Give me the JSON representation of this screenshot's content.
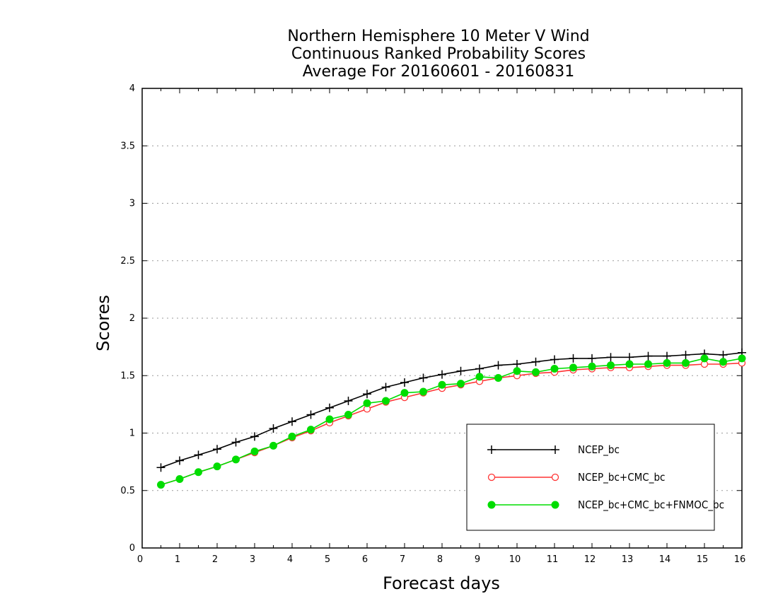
{
  "chart_data": {
    "type": "line",
    "title": [
      "Northern Hemisphere 10 Meter V Wind",
      "Continuous Ranked Probability Scores",
      "Average For 20160601 - 20160831"
    ],
    "xlabel": "Forecast days",
    "ylabel": "Scores",
    "xlim": [
      0,
      16
    ],
    "ylim": [
      0,
      4
    ],
    "x_ticks": [
      "0",
      "1",
      "2",
      "3",
      "4",
      "5",
      "6",
      "7",
      "8",
      "9",
      "10",
      "11",
      "12",
      "13",
      "14",
      "15",
      "16"
    ],
    "y_ticks": [
      "0",
      "0.5",
      "1",
      "1.5",
      "2",
      "2.5",
      "3",
      "3.5",
      "4"
    ],
    "grid": "horizontal-dotted",
    "legend_position": "bottom-right",
    "x": [
      0.5,
      1,
      1.5,
      2,
      2.5,
      3,
      3.5,
      4,
      4.5,
      5,
      5.5,
      6,
      6.5,
      7,
      7.5,
      8,
      8.5,
      9,
      9.5,
      10,
      10.5,
      11,
      11.5,
      12,
      12.5,
      13,
      13.5,
      14,
      14.5,
      15,
      15.5,
      16
    ],
    "series": [
      {
        "name": "NCEP_bc",
        "color": "#000000",
        "marker": "plus",
        "values": [
          0.7,
          0.76,
          0.81,
          0.86,
          0.92,
          0.97,
          1.04,
          1.1,
          1.16,
          1.22,
          1.28,
          1.34,
          1.4,
          1.44,
          1.48,
          1.51,
          1.54,
          1.56,
          1.59,
          1.6,
          1.62,
          1.64,
          1.65,
          1.65,
          1.66,
          1.66,
          1.67,
          1.67,
          1.68,
          1.69,
          1.68,
          1.7
        ]
      },
      {
        "name": "NCEP_bc+CMC_bc",
        "color": "#ff3333",
        "marker": "open-circle",
        "values": [
          0.55,
          0.6,
          0.66,
          0.71,
          0.77,
          0.83,
          0.89,
          0.96,
          1.02,
          1.09,
          1.15,
          1.21,
          1.27,
          1.31,
          1.35,
          1.39,
          1.42,
          1.45,
          1.48,
          1.5,
          1.52,
          1.53,
          1.55,
          1.56,
          1.57,
          1.57,
          1.58,
          1.59,
          1.59,
          1.6,
          1.6,
          1.61
        ]
      },
      {
        "name": "NCEP_bc+CMC_bc+FNMOC_bc",
        "color": "#00dd00",
        "marker": "filled-circle",
        "values": [
          0.55,
          0.6,
          0.66,
          0.71,
          0.77,
          0.84,
          0.89,
          0.97,
          1.03,
          1.12,
          1.16,
          1.26,
          1.28,
          1.35,
          1.36,
          1.42,
          1.43,
          1.49,
          1.48,
          1.54,
          1.53,
          1.56,
          1.57,
          1.58,
          1.59,
          1.6,
          1.6,
          1.61,
          1.61,
          1.65,
          1.62,
          1.65
        ]
      }
    ]
  }
}
